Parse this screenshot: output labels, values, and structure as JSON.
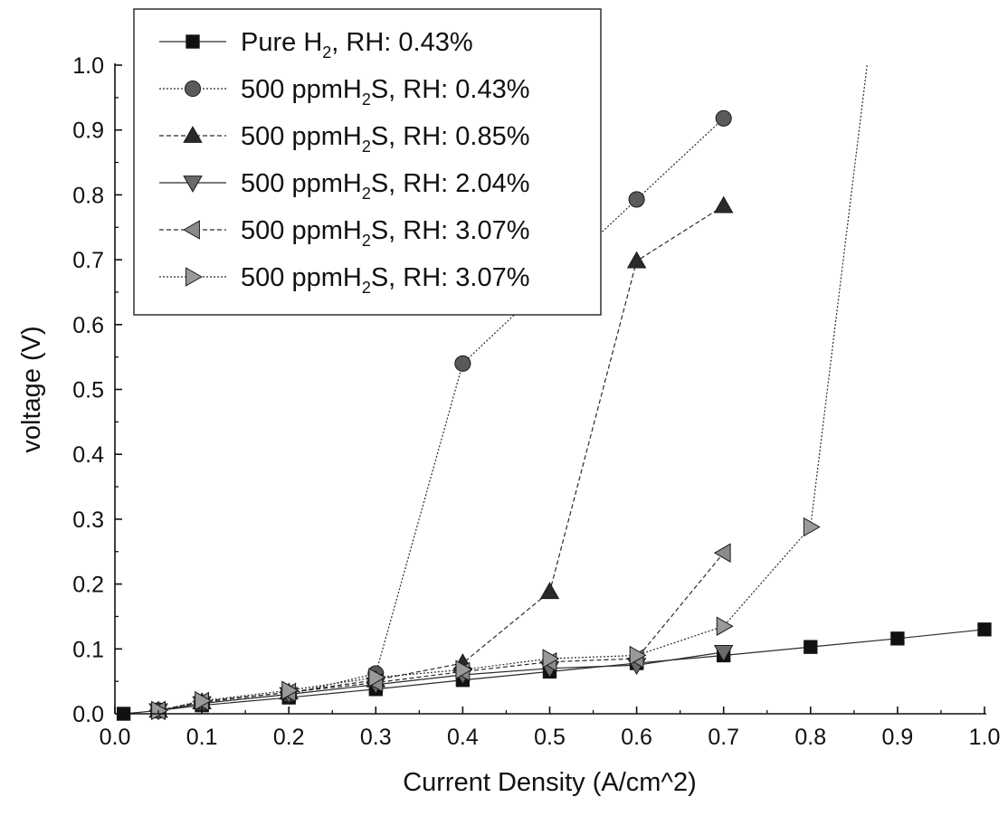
{
  "chart_data": {
    "type": "line",
    "xlabel": "Current Density (A/cm^2)",
    "ylabel": "voltage (V)",
    "xlim": [
      0,
      1.0
    ],
    "ylim": [
      0,
      1.0
    ],
    "xticks": [
      "0.0",
      "0.1",
      "0.2",
      "0.3",
      "0.4",
      "0.5",
      "0.6",
      "0.7",
      "0.8",
      "0.9",
      "1.0"
    ],
    "yticks": [
      "0.0",
      "0.1",
      "0.2",
      "0.3",
      "0.4",
      "0.5",
      "0.6",
      "0.7",
      "0.8",
      "0.9",
      "1.0"
    ],
    "grid": false,
    "legend_position": "top-left",
    "series": [
      {
        "name": "Pure H2, RH: 0.43%",
        "legend": {
          "pre": "Pure H",
          "sub": "2",
          "post": ", RH: 0.43%"
        },
        "marker": "square",
        "line": "solid",
        "color": "#111111",
        "x": [
          0.01,
          0.05,
          0.1,
          0.2,
          0.3,
          0.4,
          0.5,
          0.6,
          0.7,
          0.8,
          0.9,
          1.0
        ],
        "y": [
          0.0,
          0.005,
          0.013,
          0.025,
          0.038,
          0.052,
          0.065,
          0.078,
          0.09,
          0.103,
          0.116,
          0.13
        ]
      },
      {
        "name": "500 ppmH2S, RH: 0.43%",
        "legend": {
          "pre": "500 ppmH",
          "sub": "2",
          "post": "S, RH: 0.43%"
        },
        "marker": "circle",
        "line": "dot",
        "color": "#5a5a5a",
        "x": [
          0.05,
          0.1,
          0.2,
          0.3,
          0.4,
          0.6,
          0.7
        ],
        "y": [
          0.005,
          0.016,
          0.03,
          0.062,
          0.54,
          0.793,
          0.918
        ]
      },
      {
        "name": "500 ppmH2S, RH: 0.85%",
        "legend": {
          "pre": "500 ppmH",
          "sub": "2",
          "post": "S, RH: 0.85%"
        },
        "marker": "triangle-up",
        "line": "dash",
        "color": "#2a2a2a",
        "x": [
          0.05,
          0.1,
          0.2,
          0.3,
          0.4,
          0.5,
          0.6,
          0.7
        ],
        "y": [
          0.005,
          0.018,
          0.033,
          0.052,
          0.078,
          0.188,
          0.698,
          0.783
        ]
      },
      {
        "name": "500 ppmH2S, RH: 2.04%",
        "legend": {
          "pre": "500 ppmH",
          "sub": "2",
          "post": "S, RH: 2.04%"
        },
        "marker": "triangle-down",
        "line": "solid",
        "color": "#6a6a6a",
        "x": [
          0.05,
          0.1,
          0.2,
          0.3,
          0.4,
          0.5,
          0.6,
          0.7
        ],
        "y": [
          0.005,
          0.016,
          0.03,
          0.045,
          0.06,
          0.07,
          0.075,
          0.095
        ]
      },
      {
        "name": "500 ppmH2S, RH: 3.07%",
        "legend": {
          "pre": "500 ppmH",
          "sub": "2",
          "post": "S, RH: 3.07%"
        },
        "marker": "triangle-left",
        "line": "dash",
        "color": "#8a8a8a",
        "x": [
          0.05,
          0.1,
          0.2,
          0.3,
          0.4,
          0.5,
          0.6,
          0.7
        ],
        "y": [
          0.005,
          0.019,
          0.033,
          0.048,
          0.065,
          0.08,
          0.085,
          0.248
        ]
      },
      {
        "name": "500 ppmH2S, RH: 3.07%",
        "legend": {
          "pre": "500 ppmH",
          "sub": "2",
          "post": "S, RH: 3.07%"
        },
        "marker": "triangle-right",
        "line": "dot",
        "color": "#9a9a9a",
        "x": [
          0.05,
          0.1,
          0.2,
          0.3,
          0.4,
          0.5,
          0.6,
          0.7,
          0.8,
          0.865
        ],
        "y": [
          0.005,
          0.02,
          0.036,
          0.056,
          0.068,
          0.085,
          0.09,
          0.135,
          0.288,
          1.0
        ],
        "marker_mask": [
          true,
          true,
          true,
          true,
          true,
          true,
          true,
          true,
          true,
          false
        ]
      }
    ]
  }
}
